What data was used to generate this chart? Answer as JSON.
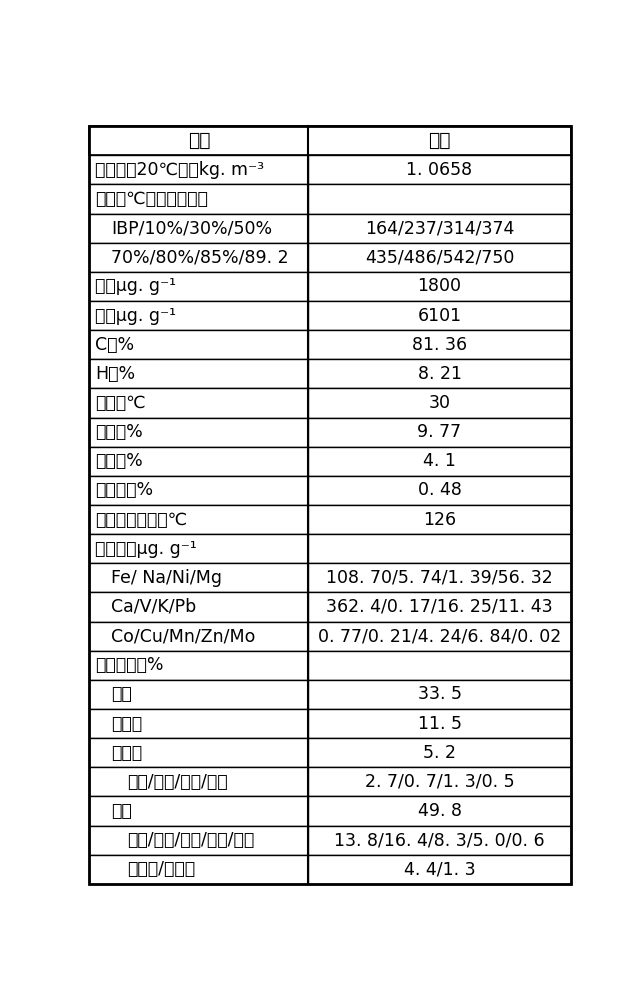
{
  "headers": [
    "项目",
    "数值"
  ],
  "rows": [
    {
      "left": "瓶密度（20℃），kg. m⁻³",
      "right": "1. 0658",
      "indent": 0
    },
    {
      "left": "馏程，℃（模拟蒸馏）",
      "right": "",
      "indent": 0
    },
    {
      "left": "IBP/10%/30%/50%",
      "right": "164/237/314/374",
      "indent": 1
    },
    {
      "left": "70%/80%/85%/89. 2",
      "right": "435/486/542/750",
      "indent": 1
    },
    {
      "left": "硫，μg. g⁻¹",
      "right": "1800",
      "indent": 0
    },
    {
      "left": "氮，μg. g⁻¹",
      "right": "6101",
      "indent": 0
    },
    {
      "left": "C，%",
      "right": "81. 36",
      "indent": 0
    },
    {
      "left": "H，%",
      "right": "8. 21",
      "indent": 0
    },
    {
      "left": "凝点，℃",
      "right": "30",
      "indent": 0
    },
    {
      "left": "残炭，%",
      "right": "9. 77",
      "indent": 0
    },
    {
      "left": "水分，%",
      "right": "4. 1",
      "indent": 0
    },
    {
      "left": "沉淀物，%",
      "right": "0. 48",
      "indent": 0
    },
    {
      "left": "闪点（闭口），℃",
      "right": "126",
      "indent": 0
    },
    {
      "left": "重金属，μg. g⁻¹",
      "right": "",
      "indent": 0
    },
    {
      "left": "Fe/ Na/Ni/Mg",
      "right": "108. 70/5. 74/1. 39/56. 32",
      "indent": 1
    },
    {
      "left": "Ca/V/K/Pb",
      "right": "362. 4/0. 17/16. 25/11. 43",
      "indent": 1
    },
    {
      "left": "Co/Cu/Mn/Zn/Mo",
      "right": "0. 77/0. 21/4. 24/6. 84/0. 02",
      "indent": 1
    },
    {
      "left": "质谱组成，%",
      "right": "",
      "indent": 0
    },
    {
      "left": "胶质",
      "right": "33. 5",
      "indent": 1
    },
    {
      "left": "链烷烃",
      "right": "11. 5",
      "indent": 1
    },
    {
      "left": "环烷烃",
      "right": "5. 2",
      "indent": 1
    },
    {
      "left": "单环/双环/三环/四环",
      "right": "2. 7/0. 7/1. 3/0. 5",
      "indent": 2
    },
    {
      "left": "芳烃",
      "right": "49. 8",
      "indent": 1
    },
    {
      "left": "单环/双环/三环/四环/五环",
      "right": "13. 8/16. 4/8. 3/5. 0/0. 6",
      "indent": 2
    },
    {
      "left": "总噻吩/未鉴定",
      "right": "4. 4/1. 3",
      "indent": 2
    }
  ],
  "col_split": 0.455,
  "background_color": "#ffffff",
  "line_color": "#000000",
  "text_color": "#000000",
  "font_size": 12.5,
  "header_font_size": 13.5
}
